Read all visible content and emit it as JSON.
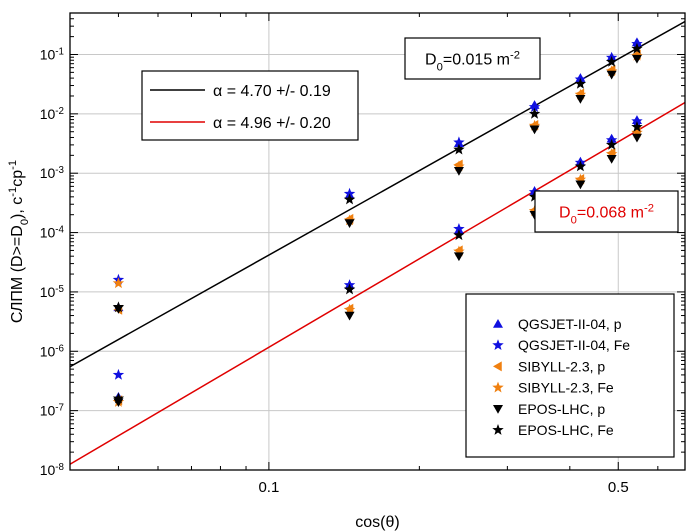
{
  "chart_data": {
    "type": "scatter",
    "x_scale": "log",
    "y_scale": "log",
    "xlim": [
      0.04,
      0.68
    ],
    "ylim": [
      1e-08,
      0.5
    ],
    "xlabel": "cos(θ)",
    "ylabel_parts": [
      "СЛПМ (D>=D",
      "0",
      "), с",
      "-1",
      "ср",
      "-1"
    ],
    "grid": true,
    "x_ticks": [
      {
        "value": 0.1,
        "label": "0.1"
      },
      {
        "value": 0.5,
        "label": "0.5"
      }
    ],
    "y_ticks": [
      {
        "value": 1e-08,
        "base": "10",
        "exp": "-8"
      },
      {
        "value": 1e-07,
        "base": "10",
        "exp": "-7"
      },
      {
        "value": 1e-06,
        "base": "10",
        "exp": "-6"
      },
      {
        "value": 1e-05,
        "base": "10",
        "exp": "-5"
      },
      {
        "value": 0.0001,
        "base": "10",
        "exp": "-4"
      },
      {
        "value": 0.001,
        "base": "10",
        "exp": "-3"
      },
      {
        "value": 0.01,
        "base": "10",
        "exp": "-2"
      },
      {
        "value": 0.1,
        "base": "10",
        "exp": "-1"
      }
    ],
    "annotations": [
      {
        "id": "d0-upper",
        "parts": [
          "D",
          "0",
          "=0.015 m",
          "-2"
        ],
        "color": "#000000"
      },
      {
        "id": "d0-lower",
        "parts": [
          "D",
          "0",
          "=0.068 m",
          "-2"
        ],
        "color": "#e00000"
      }
    ],
    "fit_lines": [
      {
        "label": "α = 4.70 +/- 0.19",
        "color": "#000000",
        "points": [
          [
            0.04,
            5.5e-07
          ],
          [
            0.68,
            0.36
          ]
        ]
      },
      {
        "label": "α = 4.96 +/- 0.20",
        "color": "#e00000",
        "points": [
          [
            0.04,
            1.25e-08
          ],
          [
            0.68,
            0.0155
          ]
        ]
      }
    ],
    "x_positions": [
      0.05,
      0.145,
      0.24,
      0.34,
      0.42,
      0.485,
      0.545
    ],
    "series": [
      {
        "name": "QGSJET-II-04, p",
        "marker": "triangle-up",
        "color": "#1010e0",
        "upper": [
          5.5e-06,
          0.00043,
          0.0032,
          0.014,
          0.04,
          0.09,
          0.16
        ],
        "lower": [
          1.7e-07,
          1.3e-05,
          0.00011,
          0.0005,
          0.00155,
          0.0038,
          0.0078
        ]
      },
      {
        "name": "QGSJET-II-04, Fe",
        "marker": "star",
        "color": "#1010e0",
        "upper": [
          1.6e-05,
          0.00045,
          0.0033,
          0.013,
          0.038,
          0.088,
          0.15
        ],
        "lower": [
          4e-07,
          1.3e-05,
          0.000115,
          0.00048,
          0.0015,
          0.0036,
          0.0075
        ]
      },
      {
        "name": "SIBYLL-2.3, p",
        "marker": "triangle-left",
        "color": "#f08010",
        "upper": [
          5e-06,
          0.00017,
          0.0014,
          0.0065,
          0.022,
          0.055,
          0.1
        ],
        "lower": [
          1.5e-07,
          5.2e-06,
          5e-05,
          0.00024,
          0.0008,
          0.0022,
          0.005
        ]
      },
      {
        "name": "SIBYLL-2.3, Fe",
        "marker": "star",
        "color": "#f08010",
        "upper": [
          1.4e-05,
          0.00016,
          0.0013,
          0.0063,
          0.021,
          0.052,
          0.095
        ],
        "lower": [
          1.4e-07,
          5e-06,
          4.8e-05,
          0.00023,
          0.00078,
          0.0021,
          0.0048
        ]
      },
      {
        "name": "EPOS-LHC, p",
        "marker": "triangle-down",
        "color": "#000000",
        "upper": [
          5.2e-06,
          0.000145,
          0.0011,
          0.0055,
          0.018,
          0.046,
          0.085
        ],
        "lower": [
          1.4e-07,
          4e-06,
          4e-05,
          0.0002,
          0.00065,
          0.00175,
          0.004
        ]
      },
      {
        "name": "EPOS-LHC, Fe",
        "marker": "star",
        "color": "#000000",
        "upper": [
          5.5e-06,
          0.00036,
          0.0025,
          0.01,
          0.032,
          0.075,
          0.125
        ],
        "lower": [
          1.6e-07,
          1.1e-05,
          9e-05,
          0.0004,
          0.0013,
          0.003,
          0.006
        ]
      }
    ]
  }
}
